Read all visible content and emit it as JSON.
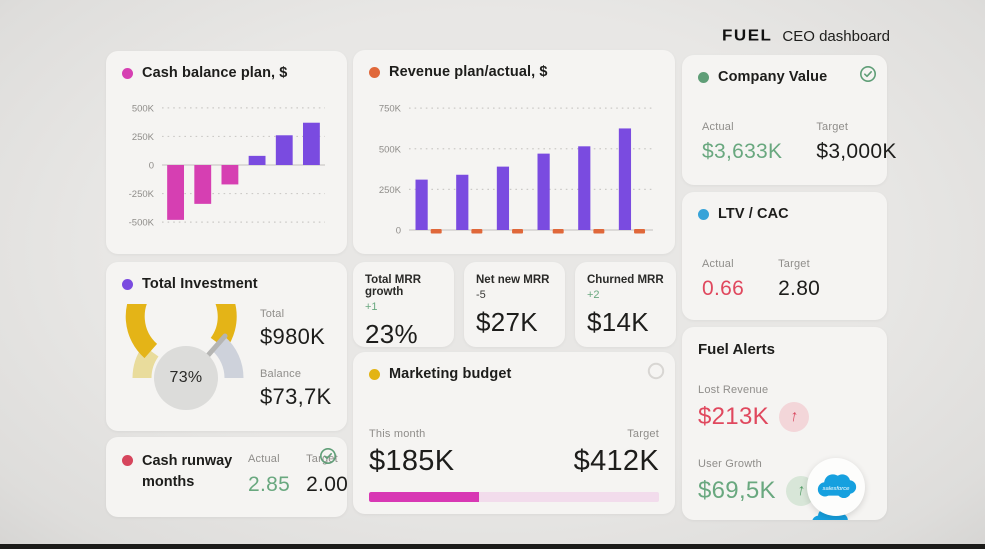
{
  "header": {
    "brand": "FUEL",
    "title": "CEO dashboard"
  },
  "cards": {
    "cash_balance": {
      "dot_color": "#d63fb2"
    },
    "revenue": {
      "dot_color": "#e0683a"
    },
    "company_value": {
      "title": "Company Value",
      "dot_color": "#5f9e77",
      "actual_label": "Actual",
      "actual_value": "$3,633K",
      "actual_color": "#69a87f",
      "target_label": "Target",
      "target_value": "$3,000K"
    },
    "ltv_cac": {
      "title": "LTV / CAC",
      "dot_color": "#38a3d8",
      "actual_label": "Actual",
      "actual_value": "0.66",
      "actual_color": "#e0485e",
      "target_label": "Target",
      "target_value": "2.80"
    },
    "total_investment": {
      "title": "Total Investment",
      "dot_color": "#7a4be0",
      "gauge": {
        "percent": 73,
        "label": "73%",
        "needle_color": "#b5b5b3",
        "center_bg": "#dcdcda",
        "segments": [
          {
            "to": 0.2,
            "color": "#e9dc9c"
          },
          {
            "to": 0.73,
            "color": "#e4b417"
          },
          {
            "to": 1,
            "color": "#ced2db"
          }
        ]
      },
      "total_label": "Total",
      "total_value": "$980K",
      "balance_label": "Balance",
      "balance_value": "$73,7K"
    },
    "mrr": [
      {
        "label": "Total MRR growth",
        "delta": "+1",
        "delta_color": "#69a87f",
        "value": "23%"
      },
      {
        "label": "Net new MRR",
        "delta": "-5",
        "delta_color": "#3a3a38",
        "value": "$27K"
      },
      {
        "label": "Churned MRR",
        "delta": "+2",
        "delta_color": "#69a87f",
        "value": "$14K"
      }
    ],
    "marketing_budget": {
      "title": "Marketing budget",
      "dot_color": "#e3b414",
      "this_month_label": "This month",
      "this_month_value": "$185K",
      "target_label": "Target",
      "target_value": "$412K",
      "progress": {
        "percent": 38,
        "fill": "#d838b4",
        "track": "#f2dcec"
      }
    },
    "cash_runway": {
      "title": "Cash runway months",
      "dot_color": "#d6455c",
      "actual_label": "Actual",
      "actual_value": "2.85",
      "actual_color": "#69a87f",
      "target_label": "Target",
      "target_value": "2.00"
    },
    "fuel_alerts": {
      "title": "Fuel Alerts",
      "items": [
        {
          "label": "Lost Revenue",
          "value": "$213K",
          "value_color": "#e0485e",
          "arrow_bg": "#f3d6d9",
          "arrow_color": "#d8445c",
          "direction": "up"
        },
        {
          "label": "User Growth",
          "value": "$69,5K",
          "value_color": "#69a87f",
          "arrow_bg": "#d8e6d8",
          "arrow_color": "#4f9a63",
          "direction": "up"
        }
      ],
      "integration": "salesforce"
    }
  },
  "chart_data": [
    {
      "type": "bar",
      "title": "Cash balance plan, $",
      "categories": [
        "",
        "",
        "",
        "",
        "",
        ""
      ],
      "values": [
        -480000,
        -340000,
        -170000,
        80000,
        260000,
        370000
      ],
      "bar_colors": [
        "#d63fb2",
        "#d63fb2",
        "#d63fb2",
        "#7a4be0",
        "#7a4be0",
        "#7a4be0"
      ],
      "y_ticks": [
        500000,
        250000,
        0,
        -250000,
        -500000
      ],
      "y_tick_labels": [
        "500K",
        "250K",
        "0",
        "-250K",
        "-500K"
      ],
      "ylim": [
        -560000,
        560000
      ],
      "xlabel": "",
      "ylabel": "",
      "grid": "horizontal-dotted",
      "legend": "none"
    },
    {
      "type": "bar",
      "title": "Revenue plan/actual, $",
      "categories": [
        "",
        "",
        "",
        "",
        "",
        ""
      ],
      "series": [
        {
          "name": "plan",
          "color": "#7a4be0",
          "values": [
            310000,
            340000,
            390000,
            470000,
            515000,
            625000
          ]
        },
        {
          "name": "actual",
          "color": "#e0683a",
          "values": [
            12000,
            12000,
            12000,
            12000,
            12000,
            12000
          ]
        }
      ],
      "y_ticks": [
        750000,
        500000,
        250000,
        0
      ],
      "y_tick_labels": [
        "750K",
        "500K",
        "250K",
        "0"
      ],
      "ylim": [
        0,
        800000
      ],
      "xlabel": "",
      "ylabel": "",
      "grid": "horizontal-dotted",
      "legend": "none"
    }
  ]
}
